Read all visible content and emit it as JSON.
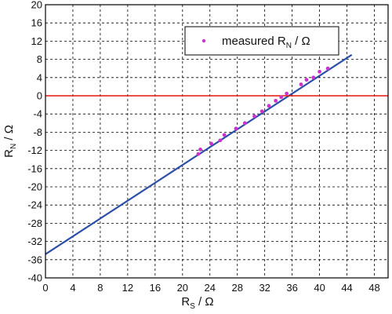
{
  "chart_data": {
    "type": "scatter",
    "xlim": [
      0,
      50
    ],
    "ylim": [
      -40,
      20
    ],
    "x_ticks": [
      "0",
      "4",
      "8",
      "12",
      "16",
      "20",
      "24",
      "28",
      "32",
      "36",
      "40",
      "44",
      "48"
    ],
    "y_ticks": [
      "20",
      "16",
      "12",
      "8",
      "4",
      "0",
      "-4",
      "-8",
      "-12",
      "-16",
      "-20",
      "-24",
      "-28",
      "-32",
      "-36",
      "-40"
    ],
    "grid": true,
    "xlabel": {
      "main": "R",
      "sub": "S",
      "suffix": " / Ω"
    },
    "ylabel": {
      "main": "R",
      "sub": "N",
      "suffix": " / Ω"
    },
    "legend": {
      "position": "top-center",
      "label_main": "measured  R",
      "label_sub": "N",
      "label_suffix": " / Ω"
    },
    "series": [
      {
        "name": "measured R_N / Ω",
        "kind": "points",
        "color": "#cc33cc",
        "x": [
          22.3,
          22.6,
          24.2,
          25.5,
          26.1,
          27.8,
          29.1,
          30.5,
          31.6,
          32.6,
          33.6,
          34.4,
          35.2,
          37.3,
          38.1,
          39.1,
          40.0,
          41.2
        ],
        "y": [
          -12.8,
          -11.8,
          -10.5,
          -9.8,
          -8.6,
          -7.2,
          -6.0,
          -4.5,
          -3.4,
          -2.2,
          -1.1,
          -0.3,
          0.5,
          2.5,
          3.5,
          4.0,
          5.3,
          6.0
        ]
      },
      {
        "kind": "fit_line",
        "color": "#2c4fa8",
        "x": [
          0,
          44.7
        ],
        "y": [
          -34.8,
          9.0
        ]
      },
      {
        "kind": "reference_line",
        "color": "#e8140c",
        "y_value": 0
      }
    ]
  }
}
